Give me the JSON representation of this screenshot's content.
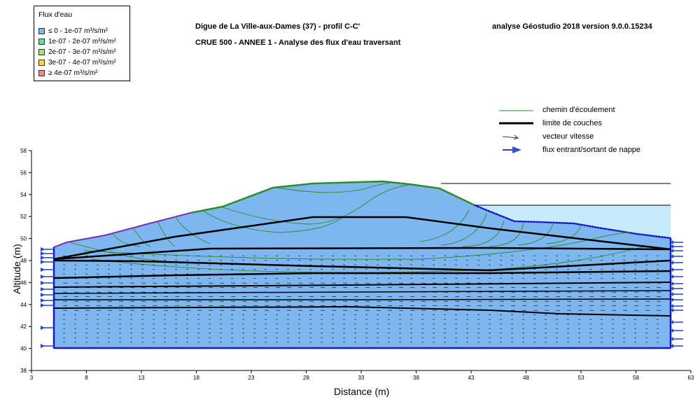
{
  "header": {
    "title_line1": "Digue de La Ville-aux-Dames (37) - profil C-C'",
    "title_line2": "CRUE 500 - ANNEE  1 - Analyse des flux d'eau traversant",
    "analysis": "analyse Géostudio 2018 version 9.0.0.15234"
  },
  "flux_legend": {
    "title": "Flux d'eau",
    "items": [
      {
        "label": "≤ 0 - 1e-07 m³/s/m²",
        "color": "#7eb6ef"
      },
      {
        "label": "1e-07 - 2e-07 m³/s/m²",
        "color": "#66d9a6"
      },
      {
        "label": "2e-07 - 3e-07 m³/s/m²",
        "color": "#a6e36b"
      },
      {
        "label": "3e-07 - 4e-07 m³/s/m²",
        "color": "#f5d54a"
      },
      {
        "label": "≥ 4e-07 m³/s/m²",
        "color": "#f08a8a"
      }
    ]
  },
  "line_legend": {
    "flow_path": "chemin d'écoulement",
    "layer_limit": "limite de couches",
    "velocity": "vecteur vitesse",
    "water_flux": "flux entrant/sortant de nappe"
  },
  "axes": {
    "xlabel": "Distance (m)",
    "ylabel": "Altitude (m)",
    "xticks": [
      "3",
      "8",
      "13",
      "18",
      "23",
      "28",
      "33",
      "38",
      "43",
      "48",
      "53",
      "58",
      "63"
    ],
    "yticks": [
      "58",
      "56",
      "54",
      "52",
      "50",
      "48",
      "46",
      "44",
      "42",
      "40",
      "38"
    ],
    "xlim": [
      3,
      63
    ],
    "ylim": [
      38,
      58
    ]
  },
  "colors": {
    "soil": "#7eb6ef",
    "water": "#c6ecfb",
    "flow_path": "#2e8b2e",
    "boundary": "#1818c8",
    "layer": "#000000"
  }
}
